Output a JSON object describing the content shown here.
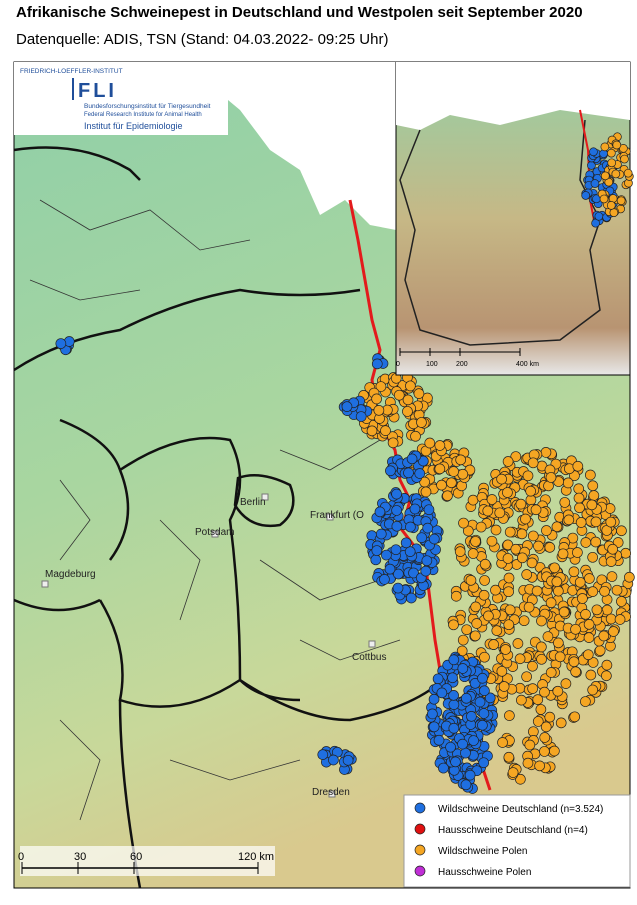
{
  "header": {
    "title": "Afrikanische Schweinepest in Deutschland und Westpolen seit September 2020",
    "subtitle": "Datenquelle: ADIS, TSN (Stand: 04.03.2022- 09:25 Uhr)"
  },
  "logo": {
    "org": "FRIEDRICH-LOEFFLER-INSTITUT",
    "abbr": "FLI",
    "name_de": "Bundesforschungsinstitut für Tiergesundheit",
    "name_en": "Federal Research Institute for Animal Health",
    "unit": "Institut für Epidemiologie"
  },
  "cities": [
    "Berlin",
    "Potsdam",
    "Frankfurt (O",
    "Magdeburg",
    "Cottbus",
    "Dresden"
  ],
  "legend": [
    {
      "label": "Wildschweine Deutschland (n=3.524)",
      "color": "#1f6fe0"
    },
    {
      "label": "Hausschweine Deutschland (n=4)",
      "color": "#e01010"
    },
    {
      "label": "Wildschweine Polen",
      "color": "#f5a623"
    },
    {
      "label": "Hausschweine Polen",
      "color": "#c02ed6"
    }
  ],
  "scale": [
    "0",
    "30",
    "60",
    "120 km"
  ],
  "inset_scale": [
    "0",
    "100",
    "200",
    "400 km"
  ]
}
